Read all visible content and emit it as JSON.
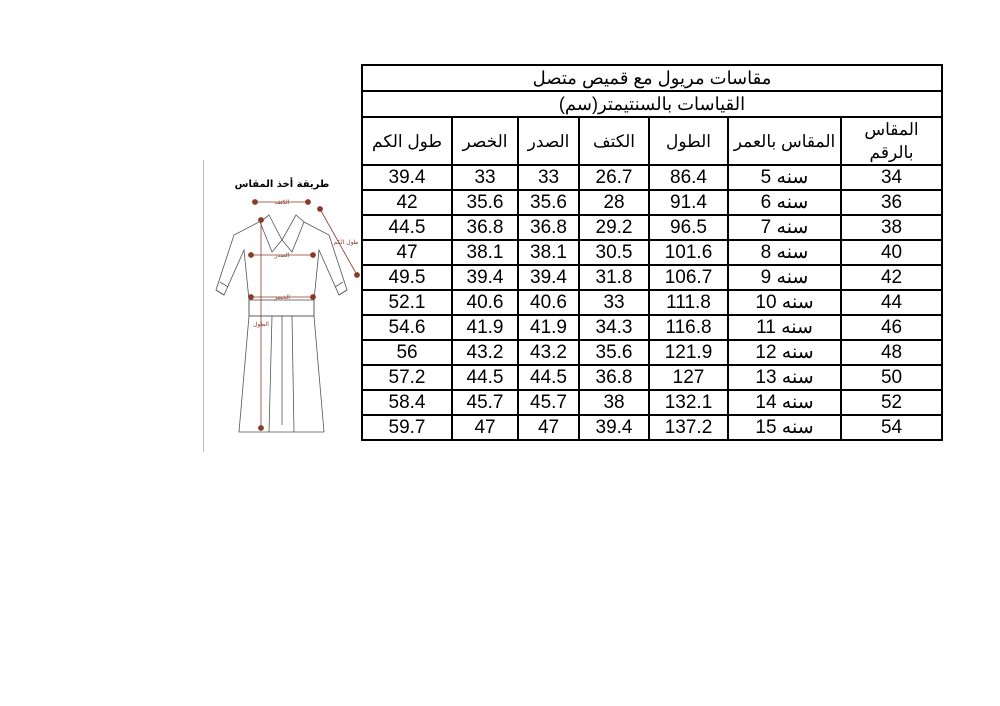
{
  "figure": {
    "title": "طريقة أخذ المقاس",
    "labels": {
      "shoulder": "الكتف",
      "sleeve": "طول الكم",
      "chest": "الصدر",
      "waist": "الخصر",
      "length": "الطول"
    },
    "marker_color": "#8b3a2a"
  },
  "table": {
    "title": "مقاسات مريول مع قميص متصل",
    "subtitle": "القياسات بالسنتيمتر(سم)",
    "headers": [
      "المقاس بالرقم",
      "المقاس بالعمر",
      "الطول",
      "الكتف",
      "الصدر",
      "الخصر",
      "طول الكم"
    ],
    "rows": [
      [
        "34",
        "سنه 5",
        "86.4",
        "26.7",
        "33",
        "33",
        "39.4"
      ],
      [
        "36",
        "سنه 6",
        "91.4",
        "28",
        "35.6",
        "35.6",
        "42"
      ],
      [
        "38",
        "سنه 7",
        "96.5",
        "29.2",
        "36.8",
        "36.8",
        "44.5"
      ],
      [
        "40",
        "سنه 8",
        "101.6",
        "30.5",
        "38.1",
        "38.1",
        "47"
      ],
      [
        "42",
        "سنه 9",
        "106.7",
        "31.8",
        "39.4",
        "39.4",
        "49.5"
      ],
      [
        "44",
        "سنه 10",
        "111.8",
        "33",
        "40.6",
        "40.6",
        "52.1"
      ],
      [
        "46",
        "سنه 11",
        "116.8",
        "34.3",
        "41.9",
        "41.9",
        "54.6"
      ],
      [
        "48",
        "سنه 12",
        "121.9",
        "35.6",
        "43.2",
        "43.2",
        "56"
      ],
      [
        "50",
        "سنه 13",
        "127",
        "36.8",
        "44.5",
        "44.5",
        "57.2"
      ],
      [
        "52",
        "سنه 14",
        "132.1",
        "38",
        "45.7",
        "45.7",
        "58.4"
      ],
      [
        "54",
        "سنه 15",
        "137.2",
        "39.4",
        "47",
        "47",
        "59.7"
      ]
    ]
  }
}
